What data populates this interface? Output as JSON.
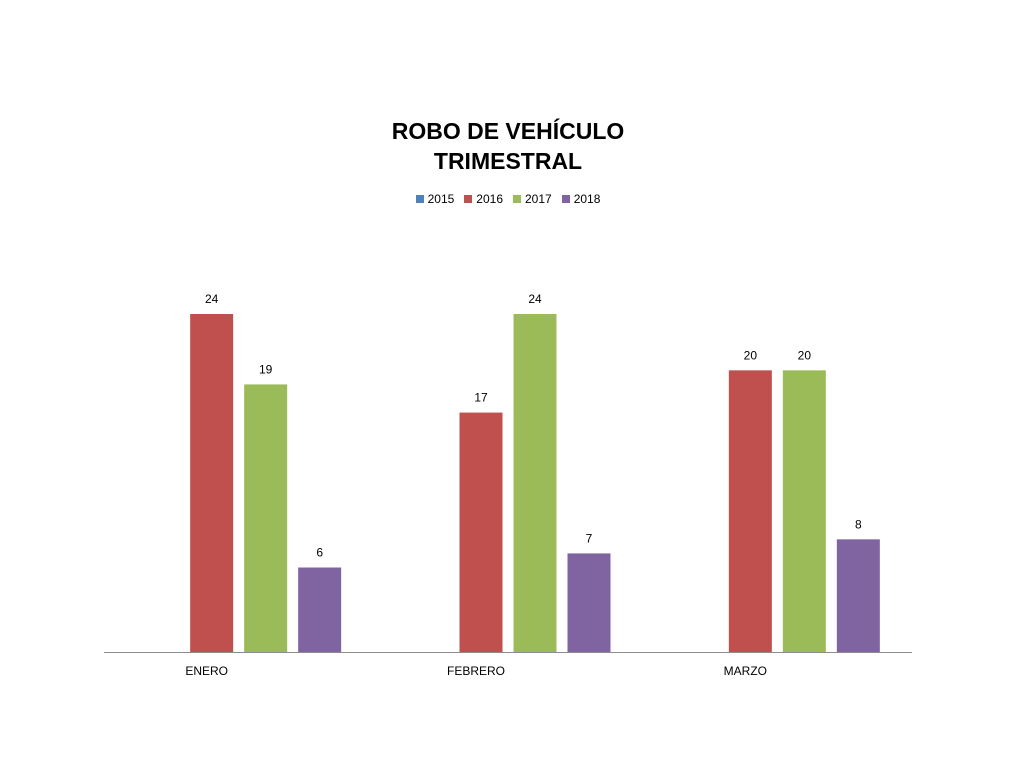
{
  "chart_data": {
    "type": "bar",
    "title_lines": [
      "ROBO DE VEHÍCULO",
      "TRIMESTRAL"
    ],
    "categories": [
      "ENERO",
      "FEBRERO",
      "MARZO"
    ],
    "series": [
      {
        "name": "2015",
        "color": "#4f81bd",
        "values": [
          null,
          null,
          null
        ]
      },
      {
        "name": "2016",
        "color": "#c0504d",
        "values": [
          24,
          17,
          20
        ]
      },
      {
        "name": "2017",
        "color": "#9bbb59",
        "values": [
          19,
          24,
          20
        ]
      },
      {
        "name": "2018",
        "color": "#8064a2",
        "values": [
          6,
          7,
          8
        ]
      }
    ],
    "ylim": [
      0,
      24
    ],
    "grid": false,
    "legend_position": "top"
  }
}
